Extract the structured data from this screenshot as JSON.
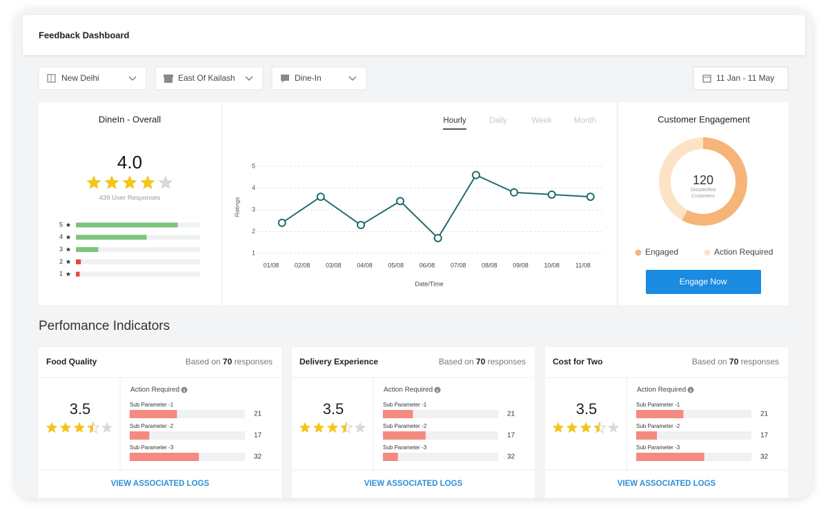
{
  "header": {
    "title": "Feedback Dashboard"
  },
  "filters": {
    "city": "New Delhi",
    "area": "East Of Kailash",
    "mode": "Dine-In",
    "date_range": "11 Jan - 11 May"
  },
  "overall": {
    "title": "DineIn - Overall",
    "rating": {
      "value": 4,
      "label": "4.0"
    },
    "responses": "439 User Responses",
    "distribution": {
      "type": "bar",
      "orientation": "horizontal",
      "categories": [
        "5",
        "4",
        "3",
        "2",
        "1"
      ],
      "values": [
        82,
        57,
        18,
        4,
        3
      ],
      "xlim": [
        0,
        100
      ],
      "colors": [
        "#7cc47a",
        "#7cc47a",
        "#7cc47a",
        "#e9473d",
        "#e9473d"
      ]
    }
  },
  "trend": {
    "type": "line",
    "tabs": [
      "Hourly",
      "Daily",
      "Week",
      "Month"
    ],
    "active_tab": "Hourly",
    "ylabel": "Ratings",
    "xlabel": "Date/Time",
    "x": [
      1.35,
      2.59,
      3.88,
      5.14,
      6.35,
      7.57,
      8.79,
      10.0,
      11.24
    ],
    "values": [
      2.4,
      3.6,
      2.3,
      3.4,
      1.7,
      4.6,
      3.8,
      3.7,
      3.6
    ],
    "color": "#1f6b6b",
    "xlim": [
      0.67,
      11.6
    ],
    "ylim": [
      1,
      5
    ],
    "yticks": [
      1,
      2,
      3,
      4,
      5
    ],
    "xticks": [
      {
        "value": 1,
        "label": "01/08"
      },
      {
        "value": 2,
        "label": "02/08"
      },
      {
        "value": 3,
        "label": "03/08"
      },
      {
        "value": 4,
        "label": "04/08"
      },
      {
        "value": 5,
        "label": "05/08"
      },
      {
        "value": 6,
        "label": "06/08"
      },
      {
        "value": 7,
        "label": "07/08"
      },
      {
        "value": 8,
        "label": "08/08"
      },
      {
        "value": 9,
        "label": "09/08"
      },
      {
        "value": 10,
        "label": "10/08"
      },
      {
        "value": 11,
        "label": "11/08"
      }
    ],
    "grid": true
  },
  "engagement": {
    "type": "pie",
    "title": "Customer Engagement",
    "center_value": 120,
    "center_label": "Dissatisfied Customers",
    "categories": [
      "Engaged",
      "Action Required"
    ],
    "values": [
      58,
      42
    ],
    "colors": [
      "#f6b478",
      "#fde3c6"
    ],
    "button": "Engage Now"
  },
  "performance": {
    "title": "Perfomance Indicators",
    "bar_xlim": [
      0,
      100
    ],
    "bar_color": "#f48a80",
    "cards": [
      {
        "title": "Food Quality",
        "based_on": "Based on",
        "responses": 70,
        "responses_label": "responses",
        "rating": 3.5,
        "action_required": "Action Required",
        "params": [
          {
            "name": "Sub Parameter -1",
            "value": 21,
            "bar": 41
          },
          {
            "name": "Sub Parameter -2",
            "value": 17,
            "bar": 17
          },
          {
            "name": "Sub Parameter -3",
            "value": 32,
            "bar": 60
          }
        ],
        "link": "VIEW ASSOCIATED LOGS"
      },
      {
        "title": "Delivery Experience",
        "based_on": "Based on",
        "responses": 70,
        "responses_label": "responses",
        "rating": 3.5,
        "action_required": "Action Required",
        "params": [
          {
            "name": "Sub Parameter -1",
            "value": 21,
            "bar": 26
          },
          {
            "name": "Sub Parameter -2",
            "value": 17,
            "bar": 37
          },
          {
            "name": "Sub Parameter -3",
            "value": 32,
            "bar": 13
          }
        ],
        "link": "VIEW ASSOCIATED LOGS"
      },
      {
        "title": "Cost for Two",
        "based_on": "Based on",
        "responses": 70,
        "responses_label": "responses",
        "rating": 3.5,
        "action_required": "Action Required",
        "params": [
          {
            "name": "Sub Parameter -1",
            "value": 21,
            "bar": 41
          },
          {
            "name": "Sub Parameter -2",
            "value": 17,
            "bar": 18
          },
          {
            "name": "Sub Parameter -3",
            "value": 32,
            "bar": 59
          }
        ],
        "link": "VIEW ASSOCIATED LOGS"
      }
    ]
  }
}
